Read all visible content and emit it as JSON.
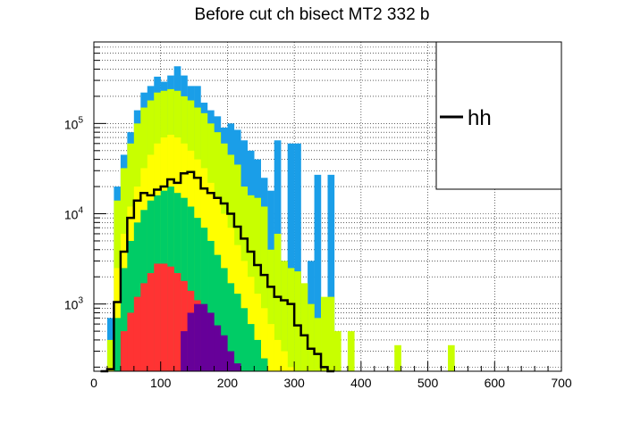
{
  "chart_data": {
    "type": "histogram",
    "title": "Before cut ch bisect MT2 332 b",
    "x_ticks": [
      "0",
      "100",
      "200",
      "300",
      "400",
      "500",
      "600",
      "700"
    ],
    "y_ticks": [
      {
        "base": "10",
        "exp": "3"
      },
      {
        "base": "10",
        "exp": "4"
      },
      {
        "base": "10",
        "exp": "5"
      }
    ],
    "xlim": [
      0,
      700
    ],
    "ylim": [
      180,
      800000
    ],
    "y_scale": "log",
    "grid": true,
    "legend_position": "top-right",
    "bin_width": 10,
    "colors": {
      "blue": "#1a9ee8",
      "lime": "#c8ff00",
      "yellow": "#ffff00",
      "green": "#00cc66",
      "red": "#ff3333",
      "purple": "#660099",
      "hh_line": "#000000"
    },
    "stacks": {
      "blue": [
        {
          "x": 10,
          "y": 0
        },
        {
          "x": 20,
          "y": 700
        },
        {
          "x": 30,
          "y": 20000
        },
        {
          "x": 40,
          "y": 45000
        },
        {
          "x": 50,
          "y": 80000
        },
        {
          "x": 60,
          "y": 140000
        },
        {
          "x": 70,
          "y": 220000
        },
        {
          "x": 80,
          "y": 260000
        },
        {
          "x": 90,
          "y": 330000
        },
        {
          "x": 100,
          "y": 290000
        },
        {
          "x": 110,
          "y": 340000
        },
        {
          "x": 120,
          "y": 430000
        },
        {
          "x": 130,
          "y": 340000
        },
        {
          "x": 140,
          "y": 260000
        },
        {
          "x": 150,
          "y": 260000
        },
        {
          "x": 160,
          "y": 170000
        },
        {
          "x": 170,
          "y": 140000
        },
        {
          "x": 180,
          "y": 120000
        },
        {
          "x": 190,
          "y": 90000
        },
        {
          "x": 200,
          "y": 100000
        },
        {
          "x": 210,
          "y": 85000
        },
        {
          "x": 220,
          "y": 65000
        },
        {
          "x": 230,
          "y": 50000
        },
        {
          "x": 240,
          "y": 40000
        },
        {
          "x": 250,
          "y": 25000
        },
        {
          "x": 260,
          "y": 18000
        },
        {
          "x": 270,
          "y": 65000
        },
        {
          "x": 280,
          "y": 3000
        },
        {
          "x": 290,
          "y": 60000
        },
        {
          "x": 300,
          "y": 60000
        },
        {
          "x": 310,
          "y": 1400
        },
        {
          "x": 320,
          "y": 3000
        },
        {
          "x": 330,
          "y": 27000
        },
        {
          "x": 340,
          "y": 0
        },
        {
          "x": 350,
          "y": 27000
        },
        {
          "x": 360,
          "y": 0
        }
      ],
      "lime": [
        {
          "x": 10,
          "y": 0
        },
        {
          "x": 20,
          "y": 400
        },
        {
          "x": 30,
          "y": 14000
        },
        {
          "x": 40,
          "y": 32000
        },
        {
          "x": 50,
          "y": 60000
        },
        {
          "x": 60,
          "y": 100000
        },
        {
          "x": 70,
          "y": 150000
        },
        {
          "x": 80,
          "y": 180000
        },
        {
          "x": 90,
          "y": 220000
        },
        {
          "x": 100,
          "y": 230000
        },
        {
          "x": 110,
          "y": 240000
        },
        {
          "x": 120,
          "y": 230000
        },
        {
          "x": 130,
          "y": 200000
        },
        {
          "x": 140,
          "y": 180000
        },
        {
          "x": 150,
          "y": 150000
        },
        {
          "x": 160,
          "y": 130000
        },
        {
          "x": 170,
          "y": 100000
        },
        {
          "x": 180,
          "y": 80000
        },
        {
          "x": 190,
          "y": 60000
        },
        {
          "x": 200,
          "y": 45000
        },
        {
          "x": 210,
          "y": 35000
        },
        {
          "x": 220,
          "y": 20000
        },
        {
          "x": 230,
          "y": 16000
        },
        {
          "x": 240,
          "y": 15000
        },
        {
          "x": 250,
          "y": 12000
        },
        {
          "x": 260,
          "y": 4000
        },
        {
          "x": 270,
          "y": 6000
        },
        {
          "x": 280,
          "y": 3000
        },
        {
          "x": 290,
          "y": 2500
        },
        {
          "x": 300,
          "y": 2300
        },
        {
          "x": 310,
          "y": 1700
        },
        {
          "x": 320,
          "y": 1000
        },
        {
          "x": 330,
          "y": 700
        },
        {
          "x": 340,
          "y": 1200
        },
        {
          "x": 350,
          "y": 1200
        },
        {
          "x": 360,
          "y": 500
        },
        {
          "x": 370,
          "y": 0
        },
        {
          "x": 380,
          "y": 500
        },
        {
          "x": 390,
          "y": 0
        },
        {
          "x": 400,
          "y": 0
        },
        {
          "x": 410,
          "y": 0
        },
        {
          "x": 420,
          "y": 0
        },
        {
          "x": 430,
          "y": 0
        },
        {
          "x": 440,
          "y": 0
        },
        {
          "x": 450,
          "y": 350
        },
        {
          "x": 460,
          "y": 0
        },
        {
          "x": 470,
          "y": 0
        },
        {
          "x": 480,
          "y": 0
        },
        {
          "x": 490,
          "y": 0
        },
        {
          "x": 500,
          "y": 0
        },
        {
          "x": 510,
          "y": 0
        },
        {
          "x": 520,
          "y": 0
        },
        {
          "x": 530,
          "y": 350
        },
        {
          "x": 540,
          "y": 0
        }
      ],
      "yellow": [
        {
          "x": 10,
          "y": 0
        },
        {
          "x": 20,
          "y": 200
        },
        {
          "x": 30,
          "y": 2500
        },
        {
          "x": 40,
          "y": 6000
        },
        {
          "x": 50,
          "y": 12000
        },
        {
          "x": 60,
          "y": 20000
        },
        {
          "x": 70,
          "y": 32000
        },
        {
          "x": 80,
          "y": 45000
        },
        {
          "x": 90,
          "y": 60000
        },
        {
          "x": 100,
          "y": 70000
        },
        {
          "x": 110,
          "y": 75000
        },
        {
          "x": 120,
          "y": 70000
        },
        {
          "x": 130,
          "y": 60000
        },
        {
          "x": 140,
          "y": 50000
        },
        {
          "x": 150,
          "y": 40000
        },
        {
          "x": 160,
          "y": 32000
        },
        {
          "x": 170,
          "y": 22000
        },
        {
          "x": 180,
          "y": 15000
        },
        {
          "x": 190,
          "y": 10000
        },
        {
          "x": 200,
          "y": 7000
        },
        {
          "x": 210,
          "y": 4500
        },
        {
          "x": 220,
          "y": 3000
        },
        {
          "x": 230,
          "y": 2000
        },
        {
          "x": 240,
          "y": 1300
        },
        {
          "x": 250,
          "y": 900
        },
        {
          "x": 260,
          "y": 600
        },
        {
          "x": 270,
          "y": 400
        },
        {
          "x": 280,
          "y": 300
        },
        {
          "x": 290,
          "y": 200
        },
        {
          "x": 300,
          "y": 0
        }
      ],
      "green": [
        {
          "x": 10,
          "y": 0
        },
        {
          "x": 20,
          "y": 0
        },
        {
          "x": 30,
          "y": 700
        },
        {
          "x": 40,
          "y": 2500
        },
        {
          "x": 50,
          "y": 5000
        },
        {
          "x": 60,
          "y": 8000
        },
        {
          "x": 70,
          "y": 11000
        },
        {
          "x": 80,
          "y": 14000
        },
        {
          "x": 90,
          "y": 16000
        },
        {
          "x": 100,
          "y": 18000
        },
        {
          "x": 110,
          "y": 20000
        },
        {
          "x": 120,
          "y": 17000
        },
        {
          "x": 130,
          "y": 15000
        },
        {
          "x": 140,
          "y": 12000
        },
        {
          "x": 150,
          "y": 9000
        },
        {
          "x": 160,
          "y": 7000
        },
        {
          "x": 170,
          "y": 5000
        },
        {
          "x": 180,
          "y": 3500
        },
        {
          "x": 190,
          "y": 2500
        },
        {
          "x": 200,
          "y": 1700
        },
        {
          "x": 210,
          "y": 1300
        },
        {
          "x": 220,
          "y": 900
        },
        {
          "x": 230,
          "y": 600
        },
        {
          "x": 240,
          "y": 400
        },
        {
          "x": 250,
          "y": 250
        },
        {
          "x": 260,
          "y": 0
        }
      ],
      "red": [
        {
          "x": 10,
          "y": 0
        },
        {
          "x": 20,
          "y": 0
        },
        {
          "x": 30,
          "y": 0
        },
        {
          "x": 40,
          "y": 500
        },
        {
          "x": 50,
          "y": 800
        },
        {
          "x": 60,
          "y": 1200
        },
        {
          "x": 70,
          "y": 1700
        },
        {
          "x": 80,
          "y": 2200
        },
        {
          "x": 90,
          "y": 2800
        },
        {
          "x": 100,
          "y": 2800
        },
        {
          "x": 110,
          "y": 2600
        },
        {
          "x": 120,
          "y": 2200
        },
        {
          "x": 130,
          "y": 1800
        },
        {
          "x": 140,
          "y": 1400
        },
        {
          "x": 150,
          "y": 1100
        },
        {
          "x": 160,
          "y": 800
        },
        {
          "x": 170,
          "y": 550
        },
        {
          "x": 180,
          "y": 380
        },
        {
          "x": 190,
          "y": 270
        },
        {
          "x": 200,
          "y": 200
        },
        {
          "x": 210,
          "y": 0
        }
      ],
      "purple": [
        {
          "x": 10,
          "y": 0
        },
        {
          "x": 120,
          "y": 0
        },
        {
          "x": 130,
          "y": 500
        },
        {
          "x": 140,
          "y": 800
        },
        {
          "x": 150,
          "y": 1000
        },
        {
          "x": 160,
          "y": 1000
        },
        {
          "x": 170,
          "y": 800
        },
        {
          "x": 180,
          "y": 580
        },
        {
          "x": 190,
          "y": 450
        },
        {
          "x": 200,
          "y": 300
        },
        {
          "x": 210,
          "y": 220
        },
        {
          "x": 220,
          "y": 0
        }
      ]
    },
    "series": [
      {
        "name": "hh",
        "x": [
          10,
          20,
          30,
          40,
          50,
          60,
          70,
          80,
          90,
          100,
          110,
          120,
          130,
          140,
          150,
          160,
          170,
          180,
          190,
          200,
          210,
          220,
          230,
          240,
          250,
          260,
          270,
          280,
          290,
          300,
          310,
          320,
          330,
          340,
          350
        ],
        "values": [
          0,
          190,
          1050,
          3800,
          9000,
          14000,
          17000,
          16000,
          18500,
          20000,
          24000,
          22000,
          28000,
          29000,
          25000,
          19000,
          17000,
          15000,
          13000,
          10000,
          7200,
          5300,
          3800,
          2700,
          2100,
          1550,
          1200,
          1100,
          1000,
          580,
          450,
          320,
          280,
          200,
          0
        ]
      }
    ],
    "legend": [
      {
        "label": "hh"
      }
    ]
  }
}
